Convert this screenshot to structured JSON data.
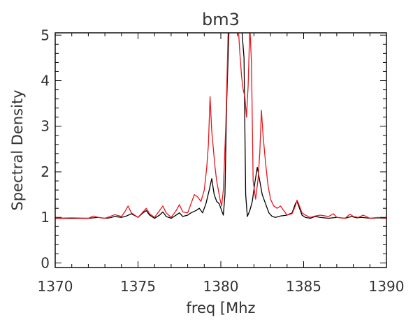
{
  "chart_data": {
    "type": "line",
    "title": "bm3",
    "xlabel": "freq [Mhz",
    "ylabel": "Spectral Density",
    "xlim": [
      1370,
      1390
    ],
    "ylim": [
      -0.1,
      5.05
    ],
    "xticks": [
      1370,
      1375,
      1380,
      1385,
      1390
    ],
    "yticks": [
      0,
      1,
      2,
      3,
      4,
      5
    ],
    "grid": false,
    "legend": "none",
    "series": [
      {
        "color": "#000000",
        "x": [
          1370.0,
          1371.0,
          1372.0,
          1372.3,
          1372.6,
          1373.0,
          1373.3,
          1373.6,
          1374.0,
          1374.3,
          1374.6,
          1375.0,
          1375.3,
          1375.5,
          1375.7,
          1376.0,
          1376.3,
          1376.5,
          1376.7,
          1377.0,
          1377.3,
          1377.5,
          1377.7,
          1378.0,
          1378.2,
          1378.5,
          1378.7,
          1378.9,
          1379.1,
          1379.3,
          1379.45,
          1379.6,
          1379.75,
          1379.9,
          1380.0,
          1380.15,
          1380.25,
          1380.35,
          1380.5,
          1380.7,
          1380.9,
          1381.1,
          1381.25,
          1381.4,
          1381.5,
          1381.6,
          1381.75,
          1381.9,
          1382.05,
          1382.2,
          1382.35,
          1382.5,
          1382.7,
          1382.9,
          1383.1,
          1383.3,
          1383.6,
          1384.0,
          1384.3,
          1384.5,
          1384.6,
          1384.75,
          1384.9,
          1385.1,
          1385.4,
          1385.7,
          1386.0,
          1386.5,
          1387.0,
          1387.5,
          1387.9,
          1388.2,
          1388.5,
          1389.0,
          1389.5,
          1390.0
        ],
        "y": [
          0.98,
          0.98,
          0.98,
          0.99,
          1.0,
          0.98,
          0.99,
          1.02,
          1.0,
          1.03,
          1.08,
          1.0,
          1.1,
          1.15,
          1.05,
          0.98,
          1.05,
          1.12,
          1.02,
          0.98,
          1.05,
          1.1,
          1.02,
          1.05,
          1.1,
          1.15,
          1.2,
          1.1,
          1.3,
          1.6,
          1.85,
          1.5,
          1.35,
          1.3,
          1.2,
          1.05,
          1.5,
          3.5,
          5.2,
          5.2,
          5.2,
          5.2,
          5.2,
          4.5,
          1.5,
          1.02,
          1.15,
          1.35,
          1.75,
          2.1,
          1.8,
          1.5,
          1.3,
          1.1,
          1.02,
          1.0,
          1.03,
          1.05,
          1.1,
          1.3,
          1.35,
          1.2,
          1.05,
          1.0,
          0.98,
          1.02,
          1.0,
          0.98,
          1.0,
          0.98,
          1.02,
          0.99,
          1.0,
          0.98,
          0.99,
          0.98
        ]
      },
      {
        "color": "#e8171c",
        "x": [
          1370.0,
          1371.0,
          1372.0,
          1372.3,
          1372.6,
          1373.0,
          1373.3,
          1373.6,
          1374.0,
          1374.2,
          1374.4,
          1374.6,
          1375.0,
          1375.3,
          1375.5,
          1375.7,
          1376.0,
          1376.3,
          1376.5,
          1376.7,
          1377.0,
          1377.3,
          1377.5,
          1377.7,
          1378.0,
          1378.2,
          1378.4,
          1378.6,
          1378.8,
          1379.0,
          1379.15,
          1379.25,
          1379.35,
          1379.45,
          1379.55,
          1379.65,
          1379.75,
          1379.85,
          1379.95,
          1380.05,
          1380.15,
          1380.3,
          1380.45,
          1380.6,
          1380.8,
          1380.95,
          1381.05,
          1381.15,
          1381.25,
          1381.35,
          1381.45,
          1381.55,
          1381.65,
          1381.75,
          1381.85,
          1381.95,
          1382.1,
          1382.25,
          1382.35,
          1382.45,
          1382.55,
          1382.7,
          1382.85,
          1383.0,
          1383.2,
          1383.4,
          1383.6,
          1383.8,
          1384.0,
          1384.3,
          1384.5,
          1384.6,
          1384.75,
          1384.9,
          1385.1,
          1385.4,
          1385.7,
          1386.0,
          1386.5,
          1386.8,
          1387.0,
          1387.5,
          1387.8,
          1388.0,
          1388.3,
          1388.6,
          1389.0,
          1389.5,
          1390.0
        ],
        "y": [
          0.98,
          0.99,
          0.98,
          1.03,
          1.0,
          0.98,
          1.02,
          1.06,
          1.02,
          1.12,
          1.25,
          1.1,
          1.0,
          1.12,
          1.2,
          1.08,
          1.0,
          1.15,
          1.25,
          1.1,
          1.0,
          1.15,
          1.28,
          1.12,
          1.1,
          1.3,
          1.5,
          1.45,
          1.35,
          1.6,
          2.1,
          2.6,
          3.65,
          2.9,
          2.5,
          2.1,
          1.8,
          1.6,
          1.4,
          1.25,
          1.6,
          3.0,
          5.2,
          5.2,
          5.2,
          5.2,
          5.2,
          4.6,
          4.1,
          3.8,
          3.65,
          3.2,
          3.9,
          5.2,
          4.4,
          1.8,
          1.4,
          1.85,
          2.4,
          3.35,
          2.8,
          2.2,
          1.7,
          1.4,
          1.25,
          1.2,
          1.25,
          1.15,
          1.05,
          1.08,
          1.25,
          1.38,
          1.25,
          1.1,
          1.05,
          1.0,
          1.03,
          1.05,
          1.02,
          1.08,
          1.0,
          0.98,
          1.07,
          1.02,
          1.0,
          1.05,
          0.98,
          1.0,
          0.98
        ]
      }
    ]
  }
}
